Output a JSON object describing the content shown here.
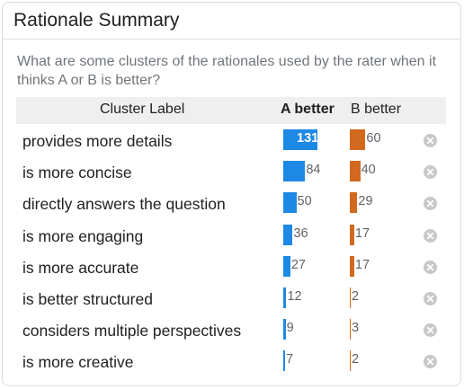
{
  "card": {
    "title": "Rationale Summary",
    "description": "What are some clusters of the rationales used by the rater when it thinks A or B is better?"
  },
  "table": {
    "headers": {
      "label": "Cluster Label",
      "a": "A better",
      "b": "B better"
    },
    "max_value": 131,
    "rows": [
      {
        "label": "provides more details",
        "a": 131,
        "b": 60
      },
      {
        "label": "is more concise",
        "a": 84,
        "b": 40
      },
      {
        "label": "directly answers the question",
        "a": 50,
        "b": 29
      },
      {
        "label": "is more engaging",
        "a": 36,
        "b": 17
      },
      {
        "label": "is more accurate",
        "a": 27,
        "b": 17
      },
      {
        "label": "is better structured",
        "a": 12,
        "b": 2
      },
      {
        "label": "considers multiple perspectives",
        "a": 9,
        "b": 3
      },
      {
        "label": "is more creative",
        "a": 7,
        "b": 2
      }
    ]
  },
  "colors": {
    "a_bar": "#1e88e5",
    "b_bar": "#d2691e"
  },
  "icons": {
    "remove": "close-circle-icon"
  }
}
